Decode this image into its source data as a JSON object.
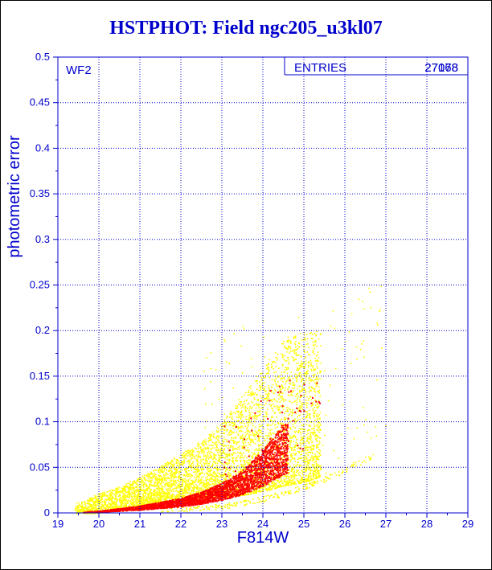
{
  "chart_data": {
    "type": "scatter",
    "title": "HSTPHOT: Field ngc205_u3kl07",
    "xlabel": "F814W",
    "ylabel": "photometric error",
    "xlim": [
      19,
      29
    ],
    "ylim": [
      0,
      0.5
    ],
    "x_ticks": [
      "19",
      "20",
      "21",
      "22",
      "23",
      "24",
      "25",
      "26",
      "27",
      "28",
      "29"
    ],
    "y_ticks": [
      "0",
      "0.05",
      "0.1",
      "0.15",
      "0.2",
      "0.25",
      "0.3",
      "0.35",
      "0.4",
      "0.45",
      "0.5"
    ],
    "grid": true,
    "annotation": "WF2",
    "stats": [
      {
        "label": "ENTRIES",
        "values": [
          "27178",
          "27068"
        ]
      }
    ],
    "series": [
      {
        "color": "#ffff00",
        "envelope_x": [
          19.5,
          20.0,
          20.5,
          21.0,
          21.5,
          22.0,
          22.5,
          23.0,
          23.5,
          24.0,
          24.5,
          25.0,
          26.0,
          27.0
        ],
        "envelope_y_low": [
          0.0,
          0.0,
          0.004,
          0.008,
          0.011,
          0.014,
          0.017,
          0.018,
          0.02,
          0.024,
          0.03,
          0.034,
          0.05,
          0.075
        ],
        "envelope_y_high": [
          0.012,
          0.022,
          0.03,
          0.04,
          0.052,
          0.066,
          0.08,
          0.1,
          0.13,
          0.16,
          0.19,
          0.2,
          0.2,
          0.21
        ]
      },
      {
        "color": "#ff0000",
        "ridge_x": [
          19.5,
          20.0,
          20.5,
          21.0,
          21.5,
          22.0,
          22.5,
          23.0,
          23.5,
          24.0,
          24.5
        ],
        "ridge_y": [
          0.001,
          0.002,
          0.004,
          0.006,
          0.009,
          0.012,
          0.017,
          0.024,
          0.034,
          0.05,
          0.07
        ]
      }
    ],
    "colors": {
      "frame": "#0000cc",
      "grid": "#0000cc",
      "background": "#ffffff"
    }
  }
}
